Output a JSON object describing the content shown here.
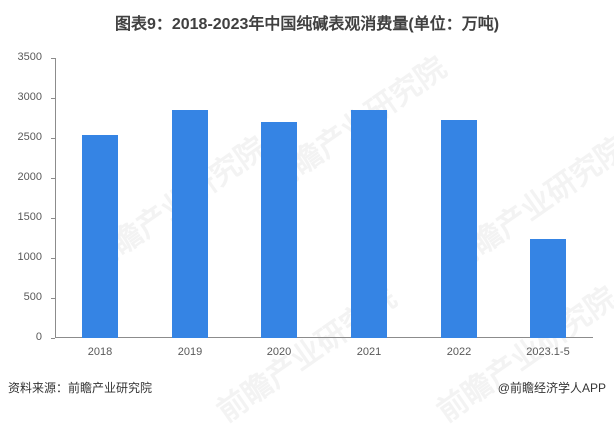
{
  "title": "图表9：2018-2023年中国纯碱表观消费量(单位：万吨)",
  "watermark": "前瞻产业研究院",
  "footer": {
    "source": "资料来源：前瞻产业研究院",
    "credit": "@前瞻经济学人APP"
  },
  "colors": {
    "bar": "#3584e4",
    "axis": "#8c8c8c"
  },
  "chart_data": {
    "type": "bar",
    "title": "图表9：2018-2023年中国纯碱表观消费量(单位：万吨)",
    "xlabel": "",
    "ylabel": "万吨",
    "categories": [
      "2018",
      "2019",
      "2020",
      "2021",
      "2022",
      "2023.1-5"
    ],
    "values": [
      2535,
      2850,
      2700,
      2850,
      2725,
      1240
    ],
    "ylim": [
      0,
      3500
    ],
    "yticks": [
      0,
      500,
      1000,
      1500,
      2000,
      2500,
      3000,
      3500
    ],
    "ytick_labels": [
      "0",
      "500",
      "1000",
      "1500",
      "2000",
      "2500",
      "3000",
      "3500"
    ],
    "grid": false,
    "legend": null
  }
}
